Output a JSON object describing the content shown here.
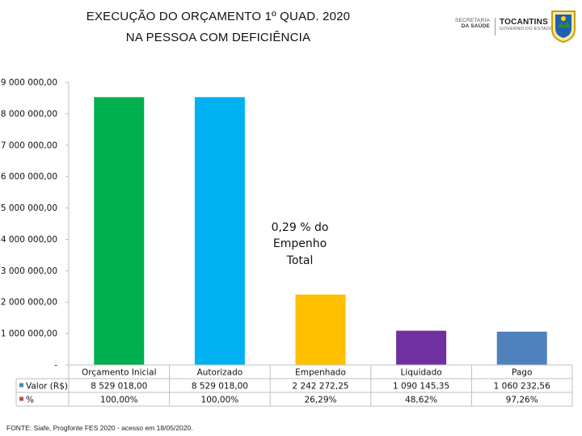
{
  "header": {
    "title_line1": "EXECUÇÃO DO ORÇAMENTO 1º QUAD. 2020",
    "title_line2": "NA PESSOA COM DEFICIÊNCIA"
  },
  "logos": {
    "sesau_line1": "SECRETARIA",
    "sesau_line2": "DA SAÚDE",
    "state_name": "TOCANTINS",
    "state_sub": "GOVERNO DO ESTADO"
  },
  "chart_data": {
    "type": "bar",
    "title": "EXECUÇÃO DO ORÇAMENTO 1º QUAD. 2020 NA PESSOA COM DEFICIÊNCIA",
    "categories": [
      "Orçamento Inicial",
      "Autorizado",
      "Empenhado",
      "Liquidado",
      "Pago"
    ],
    "values": [
      8529018.0,
      8529018.0,
      2242272.25,
      1090145.35,
      1060232.56
    ],
    "colors": [
      "#00b050",
      "#00b0f0",
      "#ffc000",
      "#7030a0",
      "#4f81bd"
    ],
    "ylim": [
      0,
      9000000
    ],
    "yticks": [
      0,
      1000000,
      2000000,
      3000000,
      4000000,
      5000000,
      6000000,
      7000000,
      8000000,
      9000000
    ],
    "ytick_labels": [
      "-",
      "1 000 000,00",
      "2 000 000,00",
      "3 000 000,00",
      "4 000 000,00",
      "5 000 000,00",
      "6 000 000,00",
      "7 000 000,00",
      "8 000 000,00",
      "9 000 000,00"
    ],
    "grid": false,
    "annotation_line1": "0,29 % do",
    "annotation_line2": "Empenho",
    "annotation_line3": "Total",
    "table": {
      "rows": [
        {
          "legend": "Valor (R$)",
          "color": "#4f81bd",
          "cells": [
            "8 529 018,00",
            "8 529 018,00",
            "2 242 272,25",
            "1 090 145,35",
            "1 060 232,56"
          ]
        },
        {
          "legend": "%",
          "color": "#c0504d",
          "cells": [
            "100,00%",
            "100,00%",
            "26,29%",
            "48,62%",
            "97,26%"
          ]
        }
      ]
    }
  },
  "footer": {
    "source": "FONTE: Siafe, Progfonte FES 2020 - acesso em 18/05/2020."
  }
}
